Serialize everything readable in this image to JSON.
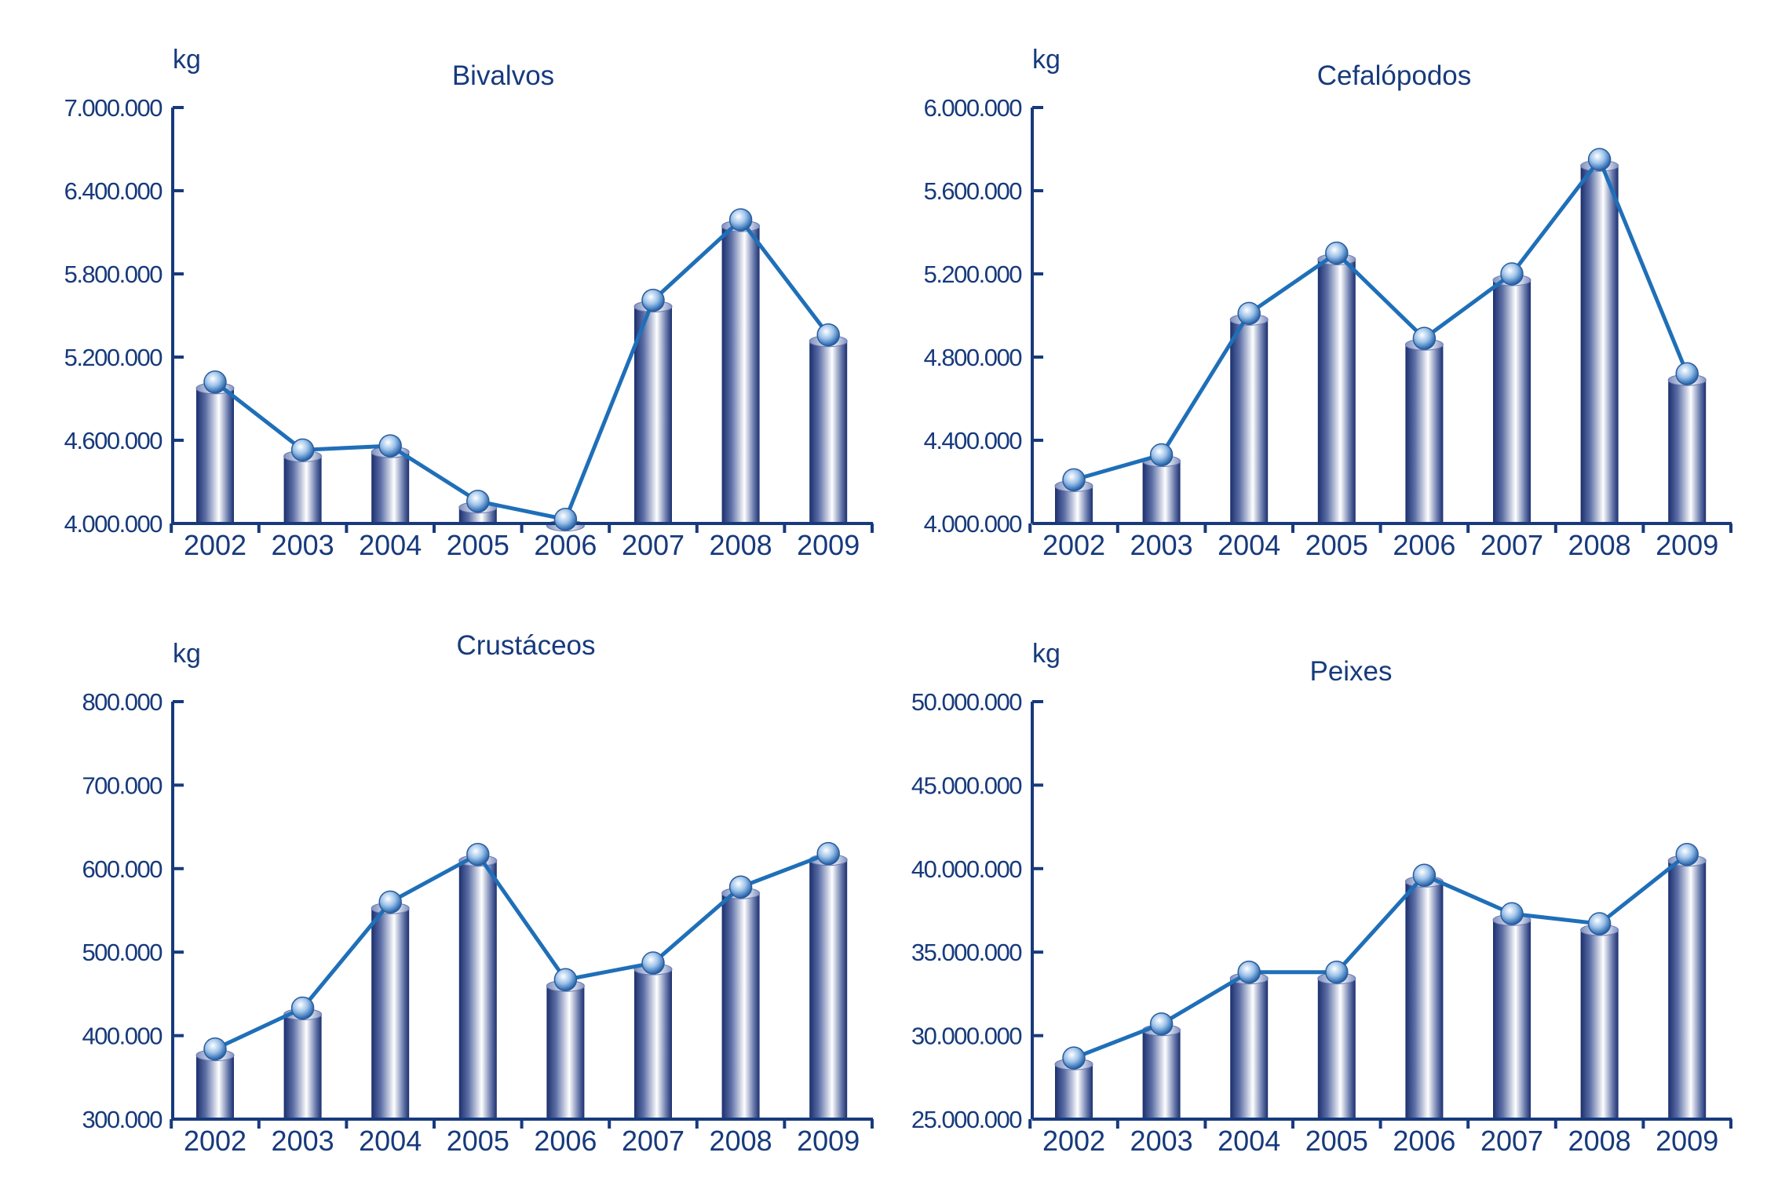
{
  "colors": {
    "axis": "#173a7c",
    "line": "#1f6fb8",
    "bar_dark": "#1b2f6e",
    "bar_light": "#ffffff"
  },
  "chart_data": [
    {
      "type": "bar+line",
      "title": "Bivalvos",
      "ylabel": "kg",
      "categories": [
        "2002",
        "2003",
        "2004",
        "2005",
        "2006",
        "2007",
        "2008",
        "2009"
      ],
      "values": [
        5020000,
        4530000,
        4560000,
        4160000,
        4030000,
        5610000,
        6190000,
        5360000
      ],
      "ylim": [
        4000000,
        7000000
      ],
      "yticks": [
        4000000,
        4600000,
        5200000,
        5800000,
        6400000,
        7000000
      ],
      "ytick_labels": [
        "4.000.000",
        "4.600.000",
        "5.200.000",
        "5.800.000",
        "6.400.000",
        "7.000.000"
      ]
    },
    {
      "type": "bar+line",
      "title": "Cefalópodos",
      "ylabel": "kg",
      "categories": [
        "2002",
        "2003",
        "2004",
        "2005",
        "2006",
        "2007",
        "2008",
        "2009"
      ],
      "values": [
        4210000,
        4330000,
        5010000,
        5300000,
        4890000,
        5200000,
        5750000,
        4720000
      ],
      "ylim": [
        4000000,
        6000000
      ],
      "yticks": [
        4000000,
        4400000,
        4800000,
        5200000,
        5600000,
        6000000
      ],
      "ytick_labels": [
        "4.000.000",
        "4.400.000",
        "4.800.000",
        "5.200.000",
        "5.600.000",
        "6.000.000"
      ]
    },
    {
      "type": "bar+line",
      "title": "Crustáceos",
      "ylabel": "kg",
      "categories": [
        "2002",
        "2003",
        "2004",
        "2005",
        "2006",
        "2007",
        "2008",
        "2009"
      ],
      "values": [
        384000,
        433000,
        560000,
        617000,
        467000,
        487000,
        578000,
        618000
      ],
      "ylim": [
        300000,
        800000
      ],
      "yticks": [
        300000,
        400000,
        500000,
        600000,
        700000,
        800000
      ],
      "ytick_labels": [
        "300.000",
        "400.000",
        "500.000",
        "600.000",
        "700.000",
        "800.000"
      ]
    },
    {
      "type": "bar+line",
      "title": "Peixes",
      "ylabel": "kg",
      "categories": [
        "2002",
        "2003",
        "2004",
        "2005",
        "2006",
        "2007",
        "2008",
        "2009"
      ],
      "values": [
        28660000,
        30700000,
        33800000,
        33800000,
        39600000,
        37300000,
        36700000,
        40850000
      ],
      "ylim": [
        25000000,
        50000000
      ],
      "yticks": [
        25000000,
        30000000,
        35000000,
        40000000,
        45000000,
        50000000
      ],
      "ytick_labels": [
        "25.000.000",
        "30.000.000",
        "35.000.000",
        "40.000.000",
        "45.000.000",
        "50.000.000"
      ]
    }
  ]
}
